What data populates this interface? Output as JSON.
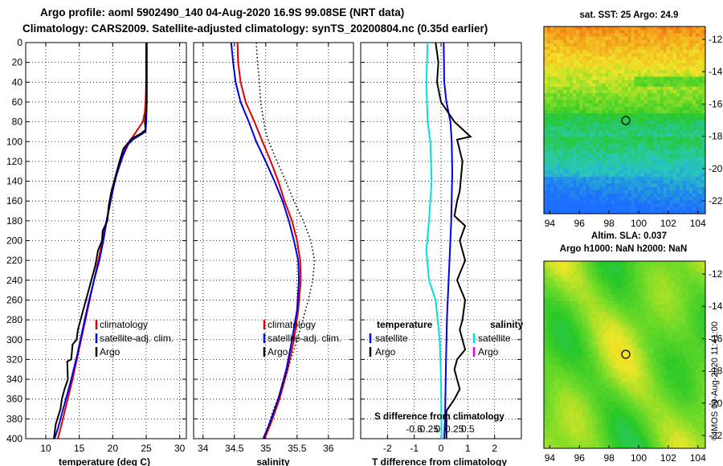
{
  "header": {
    "title1": "Argo profile: aoml 5902490_140 04-Aug-2020 16.9S 99.08SE (NRT data)",
    "title2": "Climatology: CARS2009. Satellite-adjusted climatology: synTS_20200804.nc (0.35d earlier)"
  },
  "chart_data": [
    {
      "type": "line",
      "id": "temperature",
      "xlabel": "temperature (deg C)",
      "xlim": [
        7,
        31
      ],
      "ylim": [
        400,
        0
      ],
      "xticks": [
        10,
        15,
        20,
        25,
        30
      ],
      "yticks": [
        0,
        20,
        40,
        60,
        80,
        100,
        120,
        140,
        160,
        180,
        200,
        220,
        240,
        260,
        280,
        300,
        320,
        340,
        360,
        380,
        400
      ],
      "legend": [
        "climatology",
        "satellite-adj. clim.",
        "Argo"
      ],
      "series": [
        {
          "name": "climatology",
          "color": "#e00000",
          "points": [
            [
              25.0,
              0
            ],
            [
              25.0,
              40
            ],
            [
              24.9,
              60
            ],
            [
              24.8,
              70
            ],
            [
              24.5,
              80
            ],
            [
              23.5,
              90
            ],
            [
              22.5,
              100
            ],
            [
              21.5,
              115
            ],
            [
              20.5,
              135
            ],
            [
              19.8,
              155
            ],
            [
              19.2,
              175
            ],
            [
              18.6,
              195
            ],
            [
              18.0,
              215
            ],
            [
              17.2,
              240
            ],
            [
              16.4,
              265
            ],
            [
              15.6,
              290
            ],
            [
              14.8,
              315
            ],
            [
              14.0,
              340
            ],
            [
              13.1,
              365
            ],
            [
              12.2,
              390
            ],
            [
              11.8,
              400
            ]
          ]
        },
        {
          "name": "satellite-adj. clim.",
          "color": "#0000e0",
          "points": [
            [
              25.1,
              0
            ],
            [
              25.1,
              60
            ],
            [
              25.0,
              80
            ],
            [
              24.9,
              90
            ],
            [
              23.0,
              98
            ],
            [
              22.0,
              105
            ],
            [
              21.2,
              120
            ],
            [
              20.3,
              140
            ],
            [
              19.7,
              160
            ],
            [
              19.1,
              180
            ],
            [
              18.6,
              200
            ],
            [
              18.0,
              220
            ],
            [
              17.2,
              240
            ],
            [
              16.3,
              265
            ],
            [
              15.5,
              290
            ],
            [
              14.7,
              315
            ],
            [
              13.8,
              340
            ],
            [
              12.8,
              365
            ],
            [
              11.8,
              390
            ],
            [
              11.3,
              400
            ]
          ]
        },
        {
          "name": "Argo",
          "color": "#000000",
          "points": [
            [
              25.0,
              0
            ],
            [
              25.0,
              60
            ],
            [
              25.0,
              70
            ],
            [
              24.8,
              80
            ],
            [
              24.9,
              88
            ],
            [
              24.2,
              92
            ],
            [
              22.8,
              97
            ],
            [
              21.6,
              107
            ],
            [
              21.0,
              120
            ],
            [
              20.3,
              138
            ],
            [
              19.8,
              150
            ],
            [
              19.4,
              165
            ],
            [
              19.2,
              180
            ],
            [
              18.5,
              190
            ],
            [
              18.4,
              200
            ],
            [
              17.8,
              210
            ],
            [
              17.4,
              225
            ],
            [
              16.8,
              240
            ],
            [
              16.2,
              255
            ],
            [
              15.8,
              265
            ],
            [
              15.2,
              280
            ],
            [
              14.8,
              290
            ],
            [
              14.6,
              300
            ],
            [
              14.0,
              305
            ],
            [
              13.8,
              320
            ],
            [
              13.2,
              322
            ],
            [
              13.3,
              340
            ],
            [
              12.8,
              350
            ],
            [
              12.4,
              360
            ],
            [
              12.2,
              370
            ],
            [
              11.5,
              385
            ],
            [
              11.2,
              400
            ]
          ]
        }
      ]
    },
    {
      "type": "line",
      "id": "salinity",
      "xlabel": "salinity",
      "xlim": [
        33.85,
        36.4
      ],
      "ylim": [
        400,
        0
      ],
      "xticks": [
        34,
        34.5,
        35,
        35.5,
        36
      ],
      "legend": [
        "climatology",
        "satellite-adj. clim.",
        "Argo"
      ],
      "series": [
        {
          "name": "climatology",
          "color": "#e00000",
          "points": [
            [
              34.55,
              0
            ],
            [
              34.56,
              20
            ],
            [
              34.6,
              40
            ],
            [
              34.68,
              60
            ],
            [
              34.82,
              80
            ],
            [
              34.95,
              100
            ],
            [
              35.08,
              120
            ],
            [
              35.2,
              140
            ],
            [
              35.3,
              160
            ],
            [
              35.42,
              180
            ],
            [
              35.5,
              200
            ],
            [
              35.55,
              220
            ],
            [
              35.56,
              240
            ],
            [
              35.52,
              270
            ],
            [
              35.45,
              300
            ],
            [
              35.35,
              330
            ],
            [
              35.22,
              360
            ],
            [
              35.08,
              385
            ],
            [
              34.98,
              400
            ]
          ]
        },
        {
          "name": "satellite-adj. clim.",
          "color": "#0000e0",
          "points": [
            [
              34.45,
              0
            ],
            [
              34.48,
              20
            ],
            [
              34.52,
              40
            ],
            [
              34.6,
              60
            ],
            [
              34.73,
              80
            ],
            [
              34.85,
              100
            ],
            [
              35.0,
              120
            ],
            [
              35.14,
              140
            ],
            [
              35.27,
              160
            ],
            [
              35.37,
              180
            ],
            [
              35.45,
              200
            ],
            [
              35.52,
              220
            ],
            [
              35.53,
              240
            ],
            [
              35.5,
              270
            ],
            [
              35.42,
              300
            ],
            [
              35.33,
              330
            ],
            [
              35.2,
              360
            ],
            [
              35.06,
              385
            ],
            [
              34.96,
              400
            ]
          ]
        },
        {
          "name": "Argo",
          "color": "#000000",
          "dash": "1.5,3",
          "points": [
            [
              34.85,
              0
            ],
            [
              34.87,
              20
            ],
            [
              34.9,
              40
            ],
            [
              34.92,
              60
            ],
            [
              34.97,
              80
            ],
            [
              35.0,
              90
            ],
            [
              35.05,
              100
            ],
            [
              35.18,
              120
            ],
            [
              35.32,
              140
            ],
            [
              35.45,
              160
            ],
            [
              35.6,
              180
            ],
            [
              35.72,
              200
            ],
            [
              35.78,
              220
            ],
            [
              35.75,
              240
            ],
            [
              35.68,
              260
            ],
            [
              35.55,
              290
            ],
            [
              35.4,
              320
            ],
            [
              35.25,
              350
            ],
            [
              35.1,
              375
            ],
            [
              34.98,
              400
            ]
          ]
        }
      ]
    },
    {
      "type": "line",
      "id": "difference",
      "xlabel": "T difference from climatology",
      "top_xlabel": "S difference from climatology",
      "xlim": [
        -3,
        3
      ],
      "ylim": [
        400,
        0
      ],
      "xticks": [
        -2,
        -1,
        0,
        1,
        2
      ],
      "top_xticks": [
        "-0.5",
        "-0.25",
        "0",
        "0.25",
        "0.5"
      ],
      "legend_titles": [
        "temperature",
        "salinity"
      ],
      "legend_left": [
        "satellite",
        "Argo"
      ],
      "legend_right": [
        "satellite",
        "Argo"
      ],
      "series": [
        {
          "name": "T satellite",
          "color": "#0000e0",
          "points": [
            [
              0.1,
              0
            ],
            [
              0.12,
              40
            ],
            [
              0.2,
              60
            ],
            [
              0.35,
              80
            ],
            [
              0.4,
              100
            ],
            [
              0.42,
              130
            ],
            [
              0.38,
              180
            ],
            [
              0.3,
              230
            ],
            [
              0.22,
              280
            ],
            [
              0.18,
              330
            ],
            [
              0.15,
              380
            ],
            [
              0.12,
              400
            ]
          ]
        },
        {
          "name": "S satellite",
          "color": "#00e0e0",
          "points": [
            [
              -0.5,
              0
            ],
            [
              -0.55,
              40
            ],
            [
              -0.5,
              80
            ],
            [
              -0.4,
              100
            ],
            [
              -0.35,
              140
            ],
            [
              -0.45,
              180
            ],
            [
              -0.55,
              210
            ],
            [
              -0.45,
              240
            ],
            [
              -0.2,
              260
            ],
            [
              -0.05,
              300
            ],
            [
              0,
              340
            ],
            [
              0.02,
              400
            ]
          ]
        },
        {
          "name": "T Argo",
          "color": "#000000",
          "points": [
            [
              -0.2,
              0
            ],
            [
              -0.1,
              20
            ],
            [
              -0.15,
              40
            ],
            [
              0.0,
              60
            ],
            [
              0.5,
              80
            ],
            [
              0.9,
              90
            ],
            [
              1.1,
              95
            ],
            [
              0.6,
              98
            ],
            [
              0.8,
              120
            ],
            [
              0.7,
              150
            ],
            [
              0.6,
              160
            ],
            [
              0.5,
              175
            ],
            [
              0.9,
              185
            ],
            [
              0.7,
              200
            ],
            [
              0.9,
              220
            ],
            [
              0.6,
              240
            ],
            [
              0.9,
              260
            ],
            [
              0.8,
              280
            ],
            [
              0.7,
              290
            ],
            [
              0.9,
              310
            ],
            [
              0.6,
              320
            ],
            [
              0.5,
              330
            ],
            [
              0.6,
              340
            ],
            [
              0.7,
              350
            ],
            [
              0.5,
              360
            ],
            [
              0.2,
              372
            ],
            [
              0.2,
              400
            ]
          ]
        }
      ]
    },
    {
      "type": "heatmap",
      "id": "sst_map",
      "title": "sat. SST: 25 Argo: 24.9",
      "xticks": [
        94,
        96,
        98,
        100,
        102,
        104
      ],
      "yticks": [
        -12,
        -14,
        -16,
        -18,
        -20,
        -22
      ],
      "xlim": [
        93.6,
        104.5
      ],
      "ylim": [
        -11.2,
        -22.8
      ],
      "marker": [
        99.1,
        -16.9
      ]
    },
    {
      "type": "heatmap",
      "id": "sla_map",
      "title": "Altim. SLA: 0.037",
      "subtitle": "Argo h1000: NaN h2000: NaN",
      "xticks": [
        94,
        96,
        98,
        100,
        102,
        104
      ],
      "yticks": [
        -12,
        -14,
        -16,
        -18,
        -20,
        -22
      ],
      "xlim": [
        93.6,
        104.5
      ],
      "ylim": [
        -11.2,
        -22.8
      ],
      "marker": [
        99.1,
        -16.9
      ]
    }
  ],
  "credit": "©IMOS 09-Aug-2020 11:41:00"
}
